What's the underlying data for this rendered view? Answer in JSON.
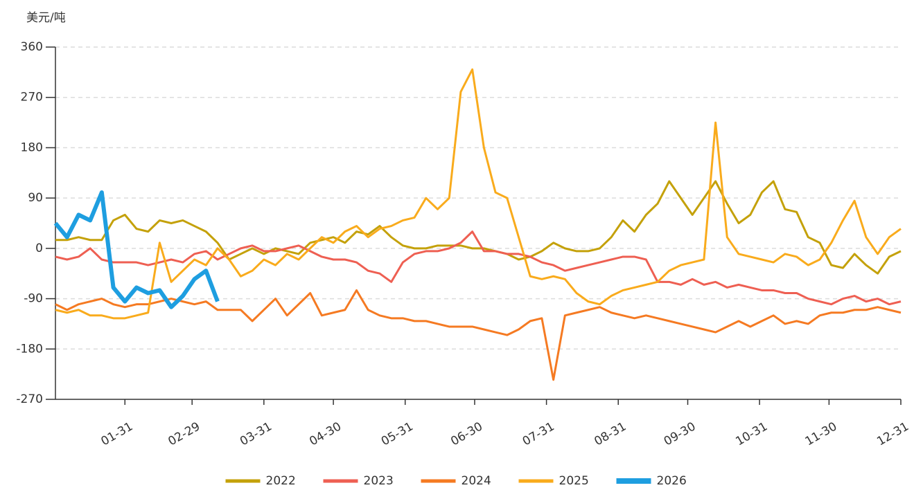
{
  "chart_data": {
    "type": "line",
    "y_axis_label": "美元/吨",
    "x": [
      1,
      6,
      11,
      16,
      21,
      26,
      31,
      36,
      41,
      46,
      51,
      56,
      61,
      66,
      71,
      76,
      81,
      86,
      91,
      96,
      101,
      106,
      111,
      116,
      121,
      126,
      131,
      136,
      141,
      146,
      151,
      156,
      161,
      166,
      171,
      176,
      181,
      186,
      191,
      196,
      201,
      206,
      211,
      216,
      221,
      226,
      231,
      236,
      241,
      246,
      251,
      256,
      261,
      266,
      271,
      276,
      281,
      286,
      291,
      296,
      301,
      306,
      311,
      316,
      321,
      326,
      331,
      336,
      341,
      346,
      351,
      356,
      361,
      366
    ],
    "xlim": [
      1,
      366
    ],
    "xticks": [
      {
        "value": 31,
        "label": "01-31"
      },
      {
        "value": 60,
        "label": "02-29"
      },
      {
        "value": 91,
        "label": "03-31"
      },
      {
        "value": 121,
        "label": "04-30"
      },
      {
        "value": 152,
        "label": "05-31"
      },
      {
        "value": 182,
        "label": "06-30"
      },
      {
        "value": 213,
        "label": "07-31"
      },
      {
        "value": 244,
        "label": "08-31"
      },
      {
        "value": 274,
        "label": "09-30"
      },
      {
        "value": 305,
        "label": "10-31"
      },
      {
        "value": 335,
        "label": "11-30"
      },
      {
        "value": 366,
        "label": "12-31"
      }
    ],
    "ylim": [
      -270,
      360
    ],
    "yticks": [
      -270,
      -180,
      -90,
      0,
      90,
      180,
      270,
      360
    ],
    "grid": true,
    "legend": "bottom",
    "series": [
      {
        "name": "2022",
        "color": "#c4a10a",
        "width": 3,
        "values": [
          15,
          15,
          20,
          15,
          15,
          50,
          60,
          35,
          30,
          50,
          45,
          50,
          40,
          30,
          10,
          -20,
          -10,
          0,
          -10,
          0,
          -5,
          -10,
          10,
          15,
          20,
          10,
          30,
          25,
          40,
          20,
          5,
          0,
          0,
          5,
          5,
          5,
          0,
          0,
          -5,
          -10,
          -20,
          -15,
          -5,
          10,
          0,
          -5,
          -5,
          0,
          20,
          50,
          30,
          60,
          80,
          120,
          90,
          60,
          90,
          120,
          80,
          45,
          60,
          100,
          120,
          70,
          65,
          20,
          10,
          -30,
          -35,
          -10,
          -30,
          -45,
          -15,
          -5
        ]
      },
      {
        "name": "2023",
        "color": "#ee5f52",
        "width": 3,
        "values": [
          -15,
          -20,
          -15,
          0,
          -20,
          -25,
          -25,
          -25,
          -30,
          -25,
          -20,
          -25,
          -10,
          -5,
          -20,
          -10,
          0,
          5,
          -5,
          -5,
          0,
          5,
          -5,
          -15,
          -20,
          -20,
          -25,
          -40,
          -45,
          -60,
          -25,
          -10,
          -5,
          -5,
          0,
          10,
          30,
          -5,
          -5,
          -10,
          -10,
          -15,
          -25,
          -30,
          -40,
          -35,
          -30,
          -25,
          -20,
          -15,
          -15,
          -20,
          -60,
          -60,
          -65,
          -55,
          -65,
          -60,
          -70,
          -65,
          -70,
          -75,
          -75,
          -80,
          -80,
          -90,
          -95,
          -100,
          -90,
          -85,
          -95,
          -90,
          -100,
          -95
        ]
      },
      {
        "name": "2024",
        "color": "#f57a22",
        "width": 3,
        "values": [
          -100,
          -110,
          -100,
          -95,
          -90,
          -100,
          -105,
          -100,
          -100,
          -95,
          -90,
          -95,
          -100,
          -95,
          -110,
          -110,
          -110,
          -130,
          -110,
          -90,
          -120,
          -100,
          -80,
          -120,
          -115,
          -110,
          -75,
          -110,
          -120,
          -125,
          -125,
          -130,
          -130,
          -135,
          -140,
          -140,
          -140,
          -145,
          -150,
          -155,
          -145,
          -130,
          -125,
          -235,
          -120,
          -115,
          -110,
          -105,
          -115,
          -120,
          -125,
          -120,
          -125,
          -130,
          -135,
          -140,
          -145,
          -150,
          -140,
          -130,
          -140,
          -130,
          -120,
          -135,
          -130,
          -135,
          -120,
          -115,
          -115,
          -110,
          -110,
          -105,
          -110,
          -115
        ]
      },
      {
        "name": "2025",
        "color": "#f9ab1c",
        "width": 3,
        "values": [
          -110,
          -115,
          -110,
          -120,
          -120,
          -125,
          -125,
          -120,
          -115,
          10,
          -60,
          -40,
          -20,
          -30,
          0,
          -20,
          -50,
          -40,
          -20,
          -30,
          -10,
          -20,
          0,
          20,
          10,
          30,
          40,
          20,
          35,
          40,
          50,
          55,
          90,
          70,
          90,
          280,
          320,
          180,
          100,
          90,
          20,
          -50,
          -55,
          -50,
          -55,
          -80,
          -95,
          -100,
          -85,
          -75,
          -70,
          -65,
          -60,
          -40,
          -30,
          -25,
          -20,
          225,
          20,
          -10,
          -15,
          -20,
          -25,
          -10,
          -15,
          -30,
          -20,
          10,
          50,
          85,
          20,
          -10,
          20,
          35
        ]
      },
      {
        "name": "2026",
        "color": "#1e9ee0",
        "width": 6,
        "values": [
          45,
          20,
          60,
          50,
          100,
          -70,
          -95,
          -70,
          -80,
          -75,
          -105,
          -85,
          -55,
          -40,
          -95,
          null,
          null,
          null,
          null,
          null,
          null,
          null,
          null,
          null,
          null,
          null,
          null,
          null,
          null,
          null,
          null,
          null,
          null,
          null,
          null,
          null,
          null,
          null,
          null,
          null,
          null,
          null,
          null,
          null,
          null,
          null,
          null,
          null,
          null,
          null,
          null,
          null,
          null,
          null,
          null,
          null,
          null,
          null,
          null,
          null,
          null,
          null,
          null,
          null,
          null,
          null,
          null,
          null,
          null,
          null,
          null,
          null,
          null,
          null
        ]
      }
    ]
  }
}
